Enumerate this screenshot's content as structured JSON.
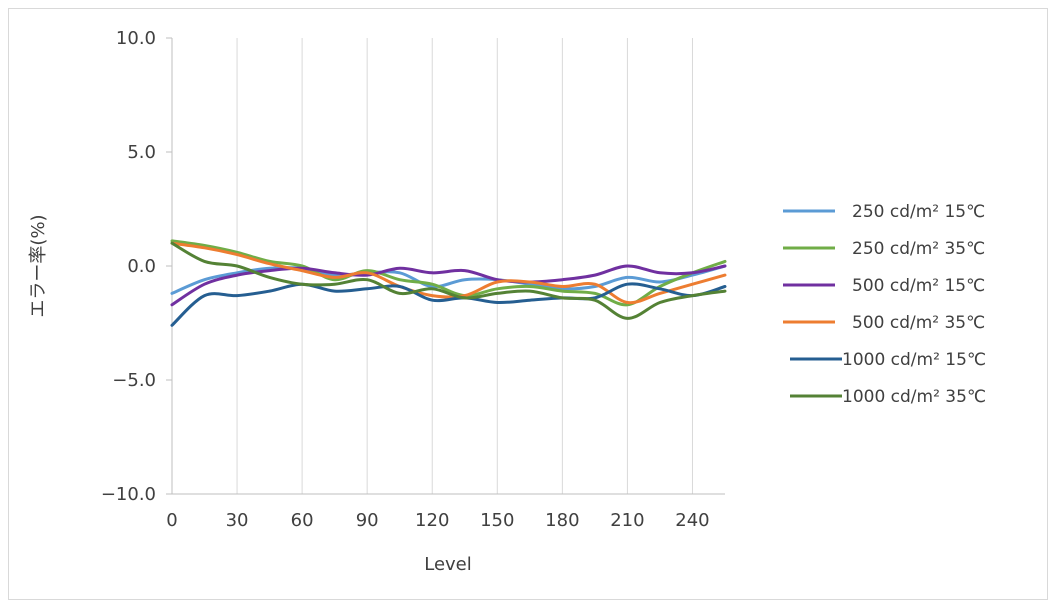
{
  "chart_data": {
    "type": "line",
    "title": "",
    "xlabel": "Level",
    "ylabel": "エラー率(%)",
    "xlim": [
      0,
      255
    ],
    "ylim": [
      -10,
      10
    ],
    "x_ticks": [
      0,
      30,
      60,
      90,
      120,
      150,
      180,
      210,
      240
    ],
    "y_ticks": [
      10,
      5,
      0,
      -5,
      -10
    ],
    "y_tick_labels": [
      "10.0",
      "5.0",
      "0.0",
      "−5.0",
      "−10.0"
    ],
    "grid": "vertical",
    "legend_position": "right",
    "x": [
      0,
      15,
      30,
      45,
      60,
      75,
      90,
      105,
      120,
      135,
      150,
      165,
      180,
      195,
      210,
      225,
      240,
      255
    ],
    "series": [
      {
        "name": "250 cd/m² 15℃",
        "color": "#5b9bd5",
        "values": [
          -1.2,
          -0.6,
          -0.3,
          -0.1,
          -0.1,
          -0.4,
          -0.3,
          -0.3,
          -0.9,
          -0.6,
          -0.6,
          -0.8,
          -1.0,
          -0.9,
          -0.5,
          -0.7,
          -0.4,
          0.0
        ]
      },
      {
        "name": "250 cd/m² 35℃",
        "color": "#70ad47",
        "values": [
          1.1,
          0.9,
          0.6,
          0.2,
          0.0,
          -0.6,
          -0.2,
          -0.6,
          -0.8,
          -1.3,
          -1.0,
          -0.9,
          -1.1,
          -1.2,
          -1.7,
          -0.9,
          -0.3,
          0.2
        ]
      },
      {
        "name": "500 cd/m² 15℃",
        "color": "#7030a0",
        "values": [
          -1.7,
          -0.8,
          -0.4,
          -0.2,
          -0.1,
          -0.3,
          -0.4,
          -0.1,
          -0.3,
          -0.2,
          -0.6,
          -0.7,
          -0.6,
          -0.4,
          0.0,
          -0.3,
          -0.3,
          0.0
        ]
      },
      {
        "name": "500 cd/m² 35℃",
        "color": "#ed7d31",
        "values": [
          1.0,
          0.8,
          0.5,
          0.1,
          -0.2,
          -0.5,
          -0.3,
          -0.9,
          -1.3,
          -1.3,
          -0.7,
          -0.7,
          -0.9,
          -0.8,
          -1.6,
          -1.2,
          -0.8,
          -0.4
        ]
      },
      {
        "name": "1000 cd/m² 15℃",
        "color": "#255e91",
        "values": [
          -2.6,
          -1.3,
          -1.3,
          -1.1,
          -0.8,
          -1.1,
          -1.0,
          -0.9,
          -1.5,
          -1.4,
          -1.6,
          -1.5,
          -1.4,
          -1.4,
          -0.8,
          -1.0,
          -1.3,
          -0.9
        ]
      },
      {
        "name": "1000 cd/m² 35℃",
        "color": "#548235",
        "values": [
          1.0,
          0.2,
          0.0,
          -0.5,
          -0.8,
          -0.8,
          -0.6,
          -1.2,
          -1.0,
          -1.4,
          -1.2,
          -1.1,
          -1.4,
          -1.5,
          -2.3,
          -1.6,
          -1.3,
          -1.1
        ]
      }
    ]
  }
}
